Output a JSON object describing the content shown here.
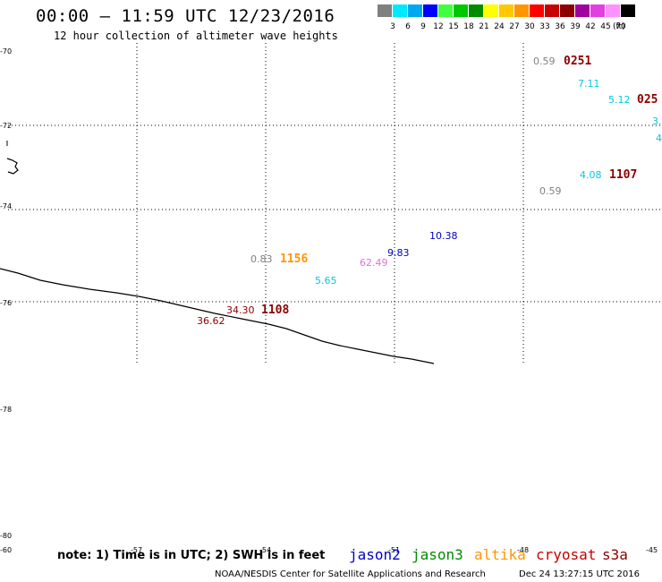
{
  "header": {
    "title": "00:00 – 11:59 UTC 12/23/2016",
    "subtitle": "12 hour collection of altimeter wave heights"
  },
  "legend": {
    "swatches": [
      {
        "color": "#808080",
        "label": "3"
      },
      {
        "color": "#00e8ff",
        "label": "6"
      },
      {
        "color": "#00a8f0",
        "label": "9"
      },
      {
        "color": "#0000ff",
        "label": "12"
      },
      {
        "color": "#40ff40",
        "label": "15"
      },
      {
        "color": "#00c800",
        "label": "18"
      },
      {
        "color": "#008c00",
        "label": "21"
      },
      {
        "color": "#ffff00",
        "label": "24"
      },
      {
        "color": "#ffc800",
        "label": "27"
      },
      {
        "color": "#ff9600",
        "label": "30"
      },
      {
        "color": "#ff0000",
        "label": "33"
      },
      {
        "color": "#c80000",
        "label": "36"
      },
      {
        "color": "#8c0000",
        "label": "39"
      },
      {
        "color": "#a000a0",
        "label": "42"
      },
      {
        "color": "#e040e0",
        "label": "45"
      },
      {
        "color": "#ff90ff",
        "label": "70"
      },
      {
        "color": "#000000",
        "label": ""
      }
    ],
    "unit": "(ft)"
  },
  "axes": {
    "lat_labels": [
      "-70",
      "-72",
      "-74",
      "-76",
      "-78",
      "-80",
      "-60"
    ],
    "lon_labels": [
      "-57",
      "-54",
      "-51",
      "-48",
      "-45"
    ]
  },
  "observations": [
    {
      "text": "0.59",
      "color": "#808080"
    },
    {
      "text": "0251",
      "color": "#8c0000",
      "kind": "time"
    },
    {
      "text": "7.11",
      "color": "#00c8e8"
    },
    {
      "text": "5.12",
      "color": "#00c8e8"
    },
    {
      "text": "025",
      "color": "#8c0000",
      "kind": "time"
    },
    {
      "text": "3.",
      "color": "#00c8e8"
    },
    {
      "text": "4",
      "color": "#00c8e8"
    },
    {
      "text": "4.08",
      "color": "#00c8e8"
    },
    {
      "text": "1107",
      "color": "#8c0000",
      "kind": "time"
    },
    {
      "text": "0.59",
      "color": "#808080"
    },
    {
      "text": "10.38",
      "color": "#0000c8"
    },
    {
      "text": "9.83",
      "color": "#0000c8"
    },
    {
      "text": "62.49",
      "color": "#e070e0"
    },
    {
      "text": "0.83",
      "color": "#808080"
    },
    {
      "text": "1156",
      "color": "#ff9600",
      "kind": "time"
    },
    {
      "text": "5.65",
      "color": "#00c8e8"
    },
    {
      "text": "34.30",
      "color": "#8c0000"
    },
    {
      "text": "1108",
      "color": "#8c0000",
      "kind": "time"
    },
    {
      "text": "36.62",
      "color": "#8c0000"
    }
  ],
  "note": "note: 1) Time is in UTC; 2) SWH is in feet",
  "satellites": [
    {
      "name": "jason2",
      "color": "#0000c8"
    },
    {
      "name": "jason3",
      "color": "#008c00"
    },
    {
      "name": "altika",
      "color": "#ff9600"
    },
    {
      "name": "cryosat",
      "color": "#c80000"
    },
    {
      "name": "s3a",
      "color": "#8c0000"
    }
  ],
  "footer": {
    "credit": "NOAA/NESDIS Center for Satellite Applications and Research",
    "timestamp": "Dec 24 13:27:15 UTC 2016"
  }
}
